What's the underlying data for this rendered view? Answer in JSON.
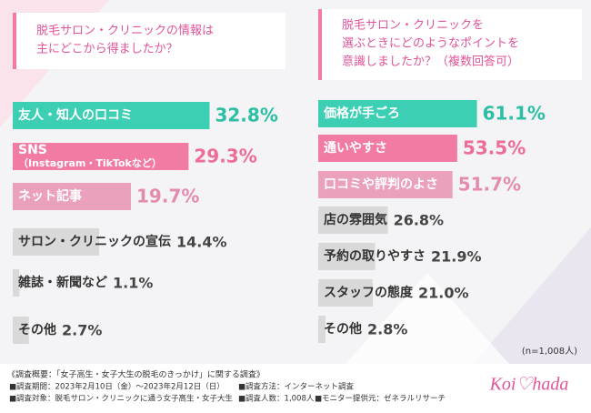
{
  "chart_data": [
    {
      "type": "bar",
      "orientation": "horizontal",
      "title": [
        "脱毛サロン・クリニックの情報は",
        "主にどこから得ましたか？"
      ],
      "categories": [
        "友人・知人の口コミ",
        [
          "SNS",
          "（Instagram・TikTokなど）"
        ],
        "ネット記事",
        "サロン・クリニックの宣伝",
        "雑誌・新聞など",
        "その他"
      ],
      "values": [
        32.8,
        29.3,
        19.7,
        14.4,
        1.1,
        2.7
      ],
      "value_labels": [
        "32.8%",
        "29.3%",
        "19.7%",
        "14.4%",
        "1.1%",
        "2.7%"
      ],
      "colors": [
        "#3dcfb3",
        "#f27ba3",
        "#eba0be",
        "#d9d9d9",
        "#d9d9d9",
        "#d9d9d9"
      ],
      "value_label_colors": [
        "#2bbfa3",
        "#ee6d98",
        "#e48cb0",
        "#444444",
        "#444444",
        "#444444"
      ],
      "xlim": [
        0,
        35
      ]
    },
    {
      "type": "bar",
      "orientation": "horizontal",
      "title": [
        "脱毛サロン・クリニックを",
        "選ぶときにどのようなポイントを",
        "意識しましたか？（複数回答可）"
      ],
      "categories": [
        "価格が手ごろ",
        "通いやすさ",
        "口コミや評判のよさ",
        "店の雰囲気",
        "予約の取りやすさ",
        "スタッフの態度",
        "その他"
      ],
      "values": [
        61.1,
        53.5,
        51.7,
        26.8,
        21.9,
        21.0,
        2.8
      ],
      "value_labels": [
        "61.1%",
        "53.5%",
        "51.7%",
        "26.8%",
        "21.9%",
        "21.0%",
        "2.8%"
      ],
      "colors": [
        "#3dcfb3",
        "#f27ba3",
        "#eba0be",
        "#d9d9d9",
        "#d9d9d9",
        "#d9d9d9",
        "#d9d9d9"
      ],
      "value_label_colors": [
        "#2bbfa3",
        "#ee6d98",
        "#e48cb0",
        "#444444",
        "#444444",
        "#444444",
        "#444444"
      ],
      "xlim": [
        0,
        70
      ],
      "note": "(n=1,008人)"
    }
  ],
  "footer": {
    "heading": "《調査概要：「女子高生・女子大生の脱毛のきっかけ」に関する調査》",
    "items": [
      "■調査期間：2023年2月10日（金）～2023年2月12日（日）",
      "■調査方法：インターネット調査",
      "■調査対象：脱毛サロン・クリニックに通う女子高生・女子大生",
      "■調査人数：1,008人",
      "■モニター提供元：ゼネラルリサーチ"
    ],
    "logo": "Koi♡hada"
  }
}
